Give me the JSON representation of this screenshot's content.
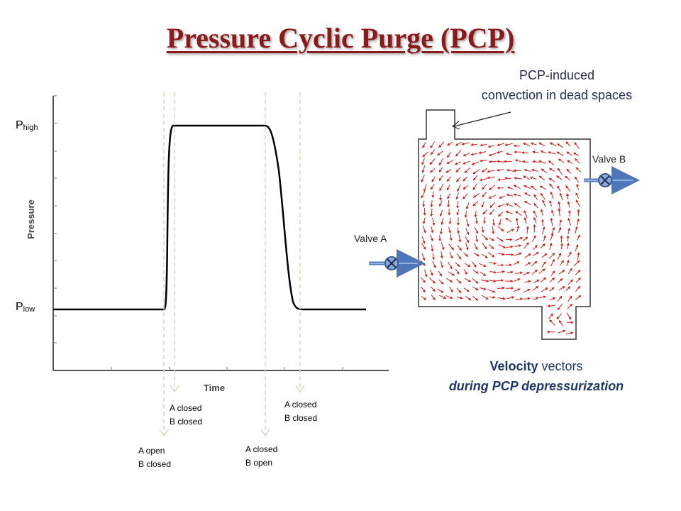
{
  "title": "Pressure Cyclic Purge (PCP)",
  "chart": {
    "y_label": "Pressure",
    "x_label": "Time",
    "p_high_main": "P",
    "p_high_sub": "high",
    "p_low_main": "P",
    "p_low_sub": "low"
  },
  "events": [
    {
      "line1": "A open",
      "line2": "B closed"
    },
    {
      "line1": "A closed",
      "line2": "B closed"
    },
    {
      "line1": "A closed",
      "line2": "B open"
    },
    {
      "line1": "A closed",
      "line2": "B closed"
    }
  ],
  "diagram": {
    "annotation_line1": "PCP-induced",
    "annotation_line2": "convection in dead spaces",
    "valve_a": "Valve A",
    "valve_b": "Valve B",
    "caption_bold": "Velocity",
    "caption_rest": " vectors",
    "caption_line2": "during PCP depressurization"
  },
  "colors": {
    "title": "#8b1a1a",
    "vectors": "#d42020",
    "valve_blue": "#6d8fc7",
    "caption": "#1f3864"
  }
}
